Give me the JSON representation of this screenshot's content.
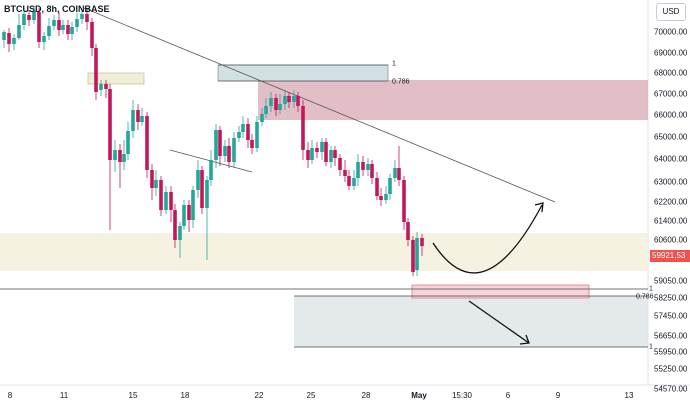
{
  "symbol": "BTCUSD, 8h, COINBASE",
  "currency": "USD",
  "last_price": "59921.53",
  "price_axis": [
    "70000.00",
    "69000.00",
    "68000.00",
    "67000.00",
    "66000.00",
    "65000.00",
    "64000.00",
    "63000.00",
    "62200.00",
    "61400.00",
    "60600.00",
    "59050.00",
    "58250.00",
    "57450.00",
    "56650.00",
    "55950.00",
    "55250.00",
    "54570.00"
  ],
  "time_axis": [
    {
      "label": "8",
      "bold": false
    },
    {
      "label": "11",
      "bold": false
    },
    {
      "label": "15",
      "bold": false
    },
    {
      "label": "18",
      "bold": false
    },
    {
      "label": "22",
      "bold": false
    },
    {
      "label": "25",
      "bold": false
    },
    {
      "label": "28",
      "bold": false
    },
    {
      "label": "May",
      "bold": true
    },
    {
      "label": "15:30",
      "bold": false
    },
    {
      "label": "6",
      "bold": false
    },
    {
      "label": "9",
      "bold": false
    },
    {
      "label": "13",
      "bold": false
    }
  ],
  "fib_upper": {
    "level_1": "1",
    "level_786": "0.786"
  },
  "fib_lower": {
    "level_1": "1",
    "level_786": "0.786"
  },
  "colors": {
    "up": "#26a69a",
    "down": "#c2185b",
    "zone_red": "#d8a9b4",
    "zone_beige": "#f3f0dc",
    "fib_box": "#d8e3e8"
  }
}
